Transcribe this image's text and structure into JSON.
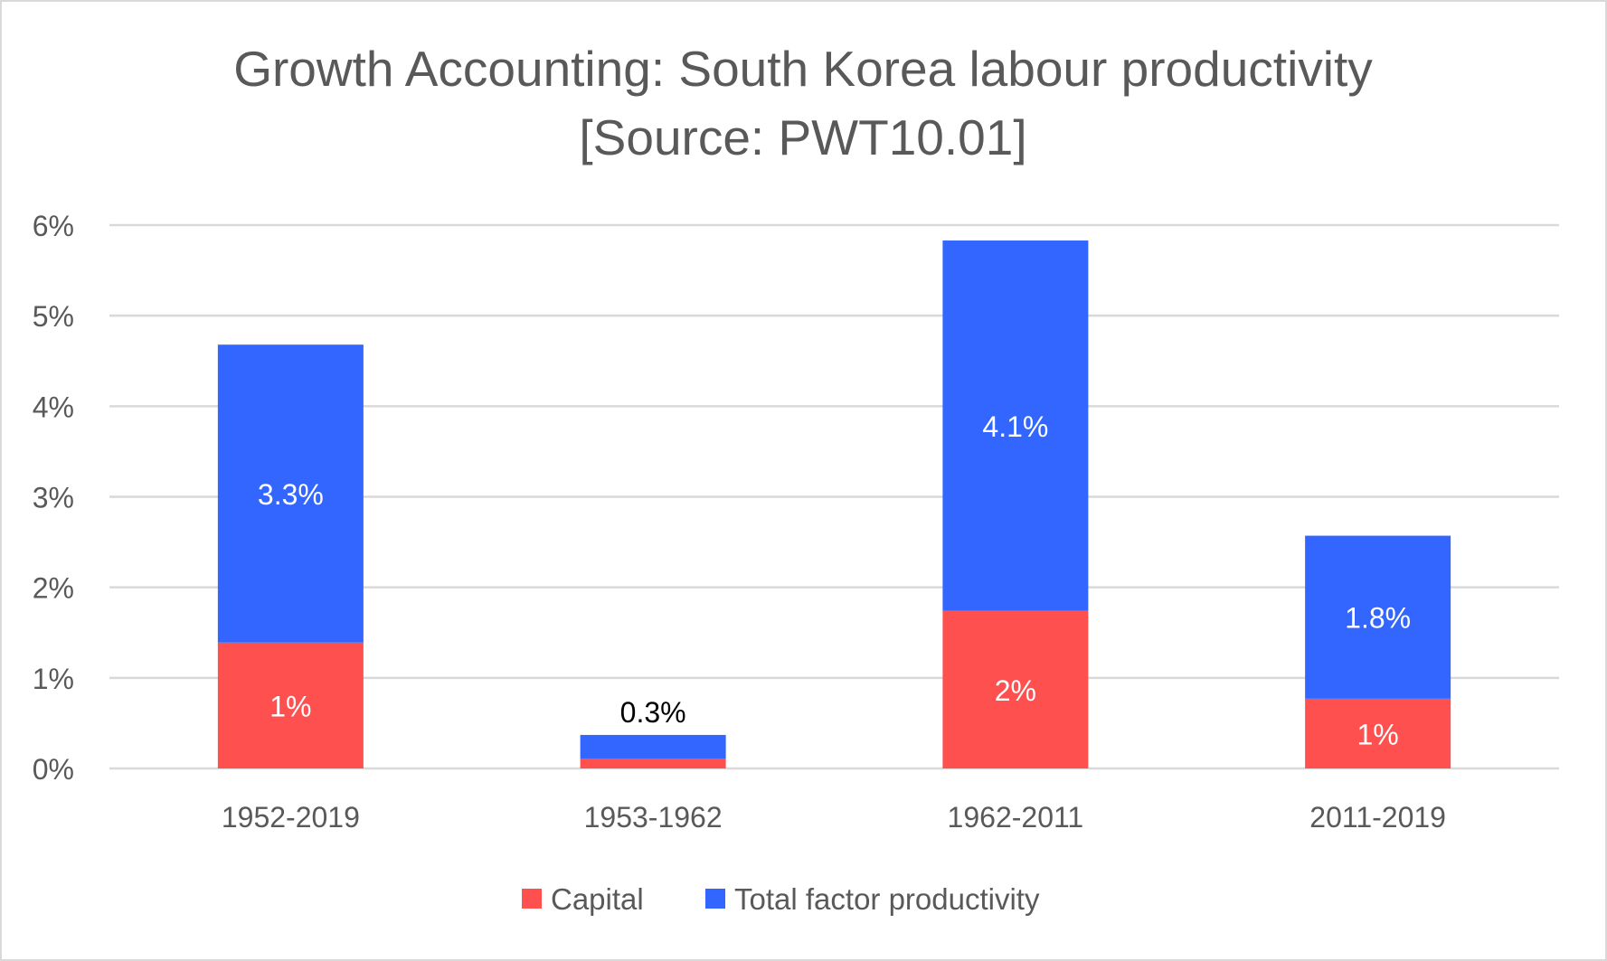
{
  "chart_data": {
    "type": "bar",
    "stacked": true,
    "title": "Growth Accounting: South Korea labour productivity",
    "subtitle": "[Source: PWT10.01]",
    "xlabel": "",
    "ylabel": "",
    "categories": [
      "1952-2019",
      "1953-1962",
      "1962-2011",
      "2011-2019"
    ],
    "series": [
      {
        "name": "Capital",
        "color": "#FF5050",
        "values": [
          1.39,
          0.11,
          1.74,
          0.77
        ],
        "labels": [
          "1%",
          "",
          "2%",
          "1%"
        ]
      },
      {
        "name": "Total factor productivity",
        "color": "#3366FF",
        "values": [
          3.29,
          0.26,
          4.09,
          1.8
        ],
        "labels": [
          "3.3%",
          "0.3%",
          "4.1%",
          "1.8%"
        ]
      }
    ],
    "ylim": [
      0,
      6
    ],
    "yticks": [
      "0%",
      "1%",
      "2%",
      "3%",
      "4%",
      "5%",
      "6%"
    ],
    "grid": true,
    "legend": "bottom"
  }
}
